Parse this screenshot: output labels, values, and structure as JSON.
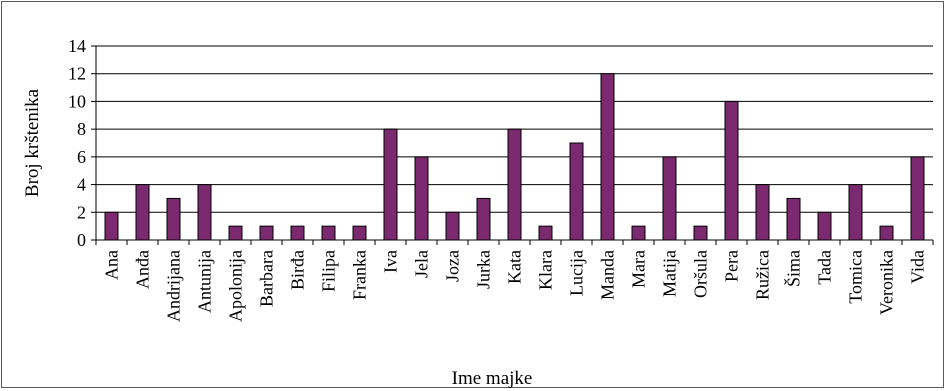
{
  "chart_data": {
    "type": "bar",
    "title": "",
    "xlabel": "Ime majke",
    "ylabel": "Broj krštenika",
    "ylim": [
      0,
      14
    ],
    "yticks": [
      0,
      2,
      4,
      6,
      8,
      10,
      12,
      14
    ],
    "grid": true,
    "legend": "none",
    "bar_color": "#7b2a6f",
    "categories": [
      "Ana",
      "Anđa",
      "Andrijana",
      "Antunija",
      "Apolonija",
      "Barbara",
      "Birđa",
      "Filipa",
      "Franka",
      "Iva",
      "Jela",
      "Joza",
      "Jurka",
      "Kata",
      "Klara",
      "Lucija",
      "Manda",
      "Mara",
      "Matija",
      "Oršula",
      "Pera",
      "Ružica",
      "Šima",
      "Tada",
      "Tomica",
      "Veronika",
      "Vida"
    ],
    "values": [
      2,
      4,
      3,
      4,
      1,
      1,
      1,
      1,
      1,
      8,
      6,
      2,
      3,
      8,
      1,
      7,
      12,
      1,
      6,
      1,
      10,
      4,
      3,
      2,
      4,
      1,
      6
    ]
  }
}
